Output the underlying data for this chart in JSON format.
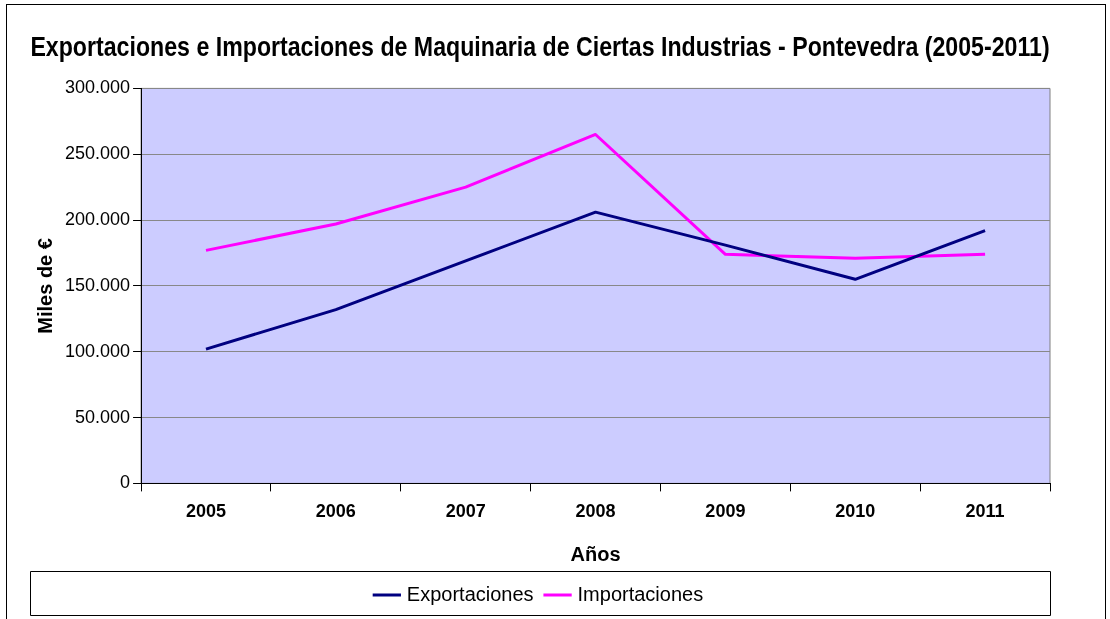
{
  "chart_data": {
    "type": "line",
    "title": "Exportaciones e Importaciones de Maquinaria de Ciertas Industrias - Pontevedra (2005-2011)",
    "xlabel": "Años",
    "ylabel": "Miles de €",
    "categories": [
      "2005",
      "2006",
      "2007",
      "2008",
      "2009",
      "2010",
      "2011"
    ],
    "series": [
      {
        "name": "Exportaciones",
        "color": "#000080",
        "values": [
          102000,
          132000,
          169000,
          206000,
          181000,
          155000,
          192000
        ]
      },
      {
        "name": "Importaciones",
        "color": "#ff00ff",
        "values": [
          177000,
          197000,
          225000,
          265000,
          174000,
          171000,
          174000
        ]
      }
    ],
    "ylim": [
      0,
      300000
    ],
    "yticks": [
      {
        "value": 0,
        "label": "0"
      },
      {
        "value": 50000,
        "label": "50.000"
      },
      {
        "value": 100000,
        "label": "100.000"
      },
      {
        "value": 150000,
        "label": "150.000"
      },
      {
        "value": 200000,
        "label": "200.000"
      },
      {
        "value": 250000,
        "label": "250.000"
      },
      {
        "value": 300000,
        "label": "300.000"
      }
    ],
    "grid": "y",
    "legend": "bottom",
    "marker": "none",
    "line_style": "solid"
  }
}
